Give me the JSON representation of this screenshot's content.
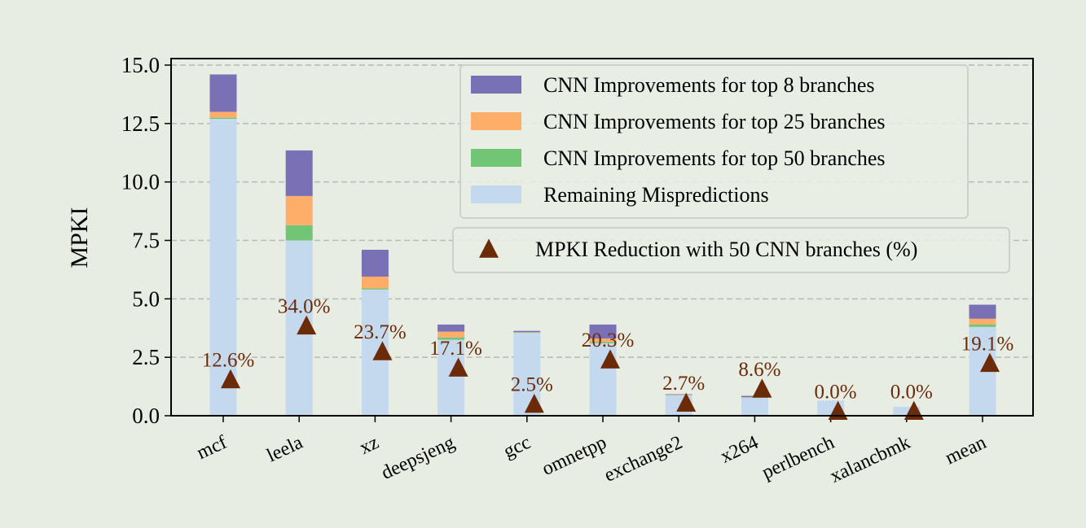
{
  "chart_data": {
    "type": "bar",
    "stacked": true,
    "ylabel": "MPKI",
    "xlabel": "",
    "ylim": [
      0,
      15.0
    ],
    "yticks": [
      "0.0",
      "2.5",
      "5.0",
      "7.5",
      "10.0",
      "12.5",
      "15.0"
    ],
    "grid": "horizontal dashed",
    "categories": [
      "mcf",
      "leela",
      "xz",
      "deepsjeng",
      "gcc",
      "omnetpp",
      "exchange2",
      "x264",
      "perlbench",
      "xalancbmk",
      "mean"
    ],
    "series": [
      {
        "name": "Remaining Mispredictions",
        "color": "#c5d9ee",
        "values": [
          12.7,
          7.5,
          5.4,
          3.25,
          3.55,
          3.1,
          0.88,
          0.78,
          0.65,
          0.38,
          3.8
        ]
      },
      {
        "name": "CNN Improvements for top 50 branches",
        "color": "#72c575",
        "values": [
          0.05,
          0.65,
          0.05,
          0.1,
          0.02,
          0.05,
          0.01,
          0.01,
          0.0,
          0.0,
          0.1
        ]
      },
      {
        "name": "CNN Improvements for top 25 branches",
        "color": "#ffae6a",
        "values": [
          0.25,
          1.25,
          0.5,
          0.25,
          0.01,
          0.15,
          0.01,
          0.01,
          0.0,
          0.0,
          0.25
        ]
      },
      {
        "name": "CNN Improvements for top 8 branches",
        "color": "#7a70b6",
        "values": [
          1.6,
          1.95,
          1.15,
          0.3,
          0.05,
          0.6,
          0.02,
          0.05,
          0.0,
          0.0,
          0.6
        ]
      }
    ],
    "reduction": {
      "name": "MPKI Reduction with 50 CNN branches (%)",
      "color": "#6b2a08",
      "marker_values": [
        1.55,
        3.85,
        2.75,
        2.05,
        0.5,
        2.4,
        0.55,
        1.15,
        0.2,
        0.2,
        2.25
      ],
      "labels": [
        "12.6%",
        "34.0%",
        "23.7%",
        "17.1%",
        "2.5%",
        "20.3%",
        "2.7%",
        "8.6%",
        "0.0%",
        "0.0%",
        "19.1%"
      ]
    },
    "legend_position": "top-right"
  }
}
